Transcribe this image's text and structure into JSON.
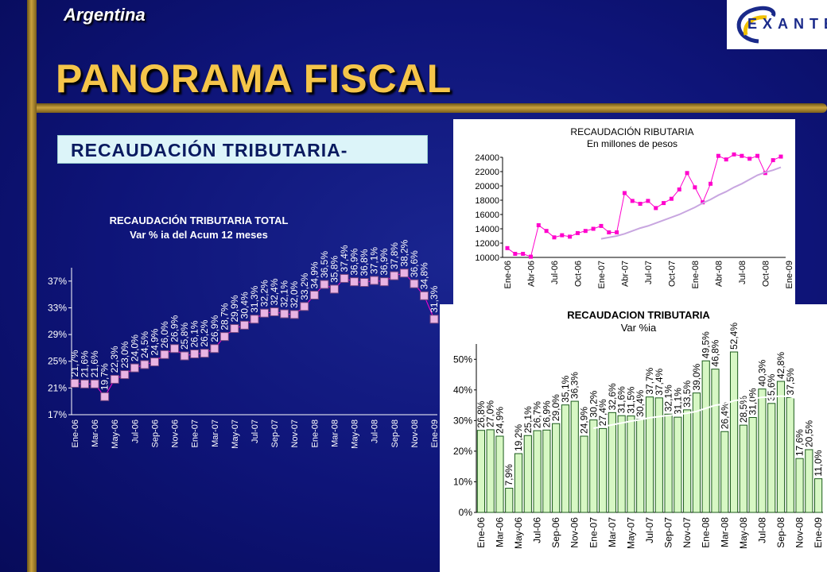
{
  "header": {
    "country": "Argentina",
    "title": "PANORAMA FISCAL",
    "section": "RECAUDACIÓN TRIBUTARIA-",
    "logo_text": "EXANTE"
  },
  "colors": {
    "gold": "#f5c54a",
    "pink": "#ff00cc",
    "bar_green": "#d7f7c4",
    "marker": "#e9b4e3"
  },
  "chart_data": [
    {
      "type": "line",
      "title": "RECAUDACIÓN TRIBUTARIA TOTAL",
      "subtitle": "Var % ia del Acum 12 meses",
      "ylim": [
        17,
        39
      ],
      "yticks": [
        "17%",
        "21%",
        "25%",
        "29%",
        "33%",
        "37%"
      ],
      "x_tick_labels": [
        "Ene-06",
        "Mar-06",
        "May-06",
        "Jul-06",
        "Sep-06",
        "Nov-06",
        "Ene-07",
        "Mar-07",
        "May-07",
        "Jul-07",
        "Sep-07",
        "Nov-07",
        "Ene-08",
        "Mar-08",
        "May-08",
        "Jul-08",
        "Sep-08",
        "Nov-08",
        "Ene-09"
      ],
      "values": [
        21.7,
        21.6,
        21.6,
        19.7,
        22.3,
        23.0,
        24.0,
        24.5,
        24.9,
        26.0,
        26.9,
        25.8,
        26.1,
        26.2,
        26.9,
        28.7,
        29.9,
        30.4,
        31.3,
        32.2,
        32.4,
        32.1,
        32.0,
        33.2,
        34.9,
        36.5,
        35.8,
        37.4,
        36.9,
        36.8,
        37.1,
        36.9,
        37.8,
        38.2,
        36.6,
        34.8,
        31.3
      ],
      "labels": [
        "21,7%",
        "21,6%",
        "21,6%",
        "19,7%",
        "22,3%",
        "23,0%",
        "24,0%",
        "24,5%",
        "24,9%",
        "26,0%",
        "26,9%",
        "25,8%",
        "26,1%",
        "26,2%",
        "26,9%",
        "28,7%",
        "29,9%",
        "30,4%",
        "31,3%",
        "32,2%",
        "32,4%",
        "32,1%",
        "32,0%",
        "33,2%",
        "34,9%",
        "36,5%",
        "35,8%",
        "37,4%",
        "36,9%",
        "36,8%",
        "37,1%",
        "36,9%",
        "37,8%",
        "38,2%",
        "36,6%",
        "34,8%",
        "31,3%"
      ]
    },
    {
      "type": "line",
      "title": "RECAUDACIÓN RIBUTARIA",
      "subtitle": "En millones de pesos",
      "ylim": [
        10000,
        24000
      ],
      "yticks": [
        "10000",
        "12000",
        "14000",
        "16000",
        "18000",
        "20000",
        "22000",
        "24000"
      ],
      "x_tick_labels": [
        "Ene-06",
        "Abr-06",
        "Jul-06",
        "Oct-06",
        "Ene-07",
        "Abr-07",
        "Jul-07",
        "Oct-07",
        "Ene-08",
        "Abr-08",
        "Jul-08",
        "Oct-08",
        "Ene-09"
      ],
      "series": [
        {
          "values": [
            11300,
            10500,
            10500,
            10100,
            14500,
            13700,
            12800,
            13100,
            12900,
            13400,
            13700,
            14000,
            14400,
            13500,
            13500,
            19000,
            17900,
            17500,
            17900,
            16900,
            17600,
            18200,
            19500,
            21800,
            19800,
            17700,
            20300,
            24200,
            23700,
            24400,
            24200,
            23800,
            24200,
            21800,
            23600,
            24100
          ]
        },
        {
          "values": [
            null,
            null,
            null,
            null,
            null,
            null,
            null,
            null,
            null,
            null,
            null,
            null,
            12600,
            12800,
            13000,
            13300,
            13700,
            14100,
            14400,
            14800,
            15200,
            15600,
            16000,
            16500,
            17000,
            17600,
            18100,
            18700,
            19200,
            19800,
            20300,
            20900,
            21500,
            21900,
            22200,
            22600
          ]
        }
      ]
    },
    {
      "type": "bar",
      "title": "RECAUDACION TRIBUTARIA",
      "subtitle": "Var %ia",
      "ylim": [
        0,
        55
      ],
      "yticks": [
        "0%",
        "10%",
        "20%",
        "30%",
        "40%",
        "50%"
      ],
      "x_tick_labels": [
        "Ene-06",
        "Mar-06",
        "May-06",
        "Jul-06",
        "Sep-06",
        "Nov-06",
        "Ene-07",
        "Mar-07",
        "May-07",
        "Jul-07",
        "Sep-07",
        "Nov-07",
        "Ene-08",
        "Mar-08",
        "May-08",
        "Jul-08",
        "Sep-08",
        "Nov-08",
        "Ene-09"
      ],
      "values": [
        26.8,
        27.0,
        24.9,
        7.9,
        19.2,
        25.1,
        26.7,
        26.9,
        29.0,
        35.1,
        36.3,
        24.9,
        30.2,
        27.4,
        32.6,
        31.6,
        31.5,
        30.4,
        37.7,
        37.4,
        32.1,
        31.1,
        33.5,
        39.0,
        49.5,
        46.8,
        26.4,
        52.4,
        28.5,
        31.0,
        40.3,
        35.6,
        42.8,
        37.5,
        17.6,
        20.5,
        11.0
      ],
      "labels": [
        "26,8%",
        "27,0%",
        "24,9%",
        "7,9%",
        "19,2%",
        "25,1%",
        "26,7%",
        "26,9%",
        "29,0%",
        "35,1%",
        "36,3%",
        "24,9%",
        "30,2%",
        "27,4%",
        "32,6%",
        "31,6%",
        "31,5%",
        "30,4%",
        "37,7%",
        "37,4%",
        "32,1%",
        "31,1%",
        "33,5%",
        "39,0%",
        "49,5%",
        "46,8%",
        "26,4%",
        "52,4%",
        "28,5%",
        "31,0%",
        "40,3%",
        "35,6%",
        "42,8%",
        "37,5%",
        "17,6%",
        "20,5%",
        "11,0%"
      ],
      "trend": [
        null,
        null,
        null,
        null,
        null,
        null,
        null,
        null,
        null,
        null,
        null,
        null,
        27.5,
        28.0,
        28.6,
        29.2,
        29.8,
        30.3,
        30.9,
        31.3,
        31.7,
        32.0,
        32.4,
        33.0,
        34.0,
        35.0,
        35.4,
        36.5,
        36.9,
        37.1,
        37.6,
        37.7,
        38.0,
        37.8,
        37.0,
        35.5,
        32.5
      ]
    }
  ]
}
